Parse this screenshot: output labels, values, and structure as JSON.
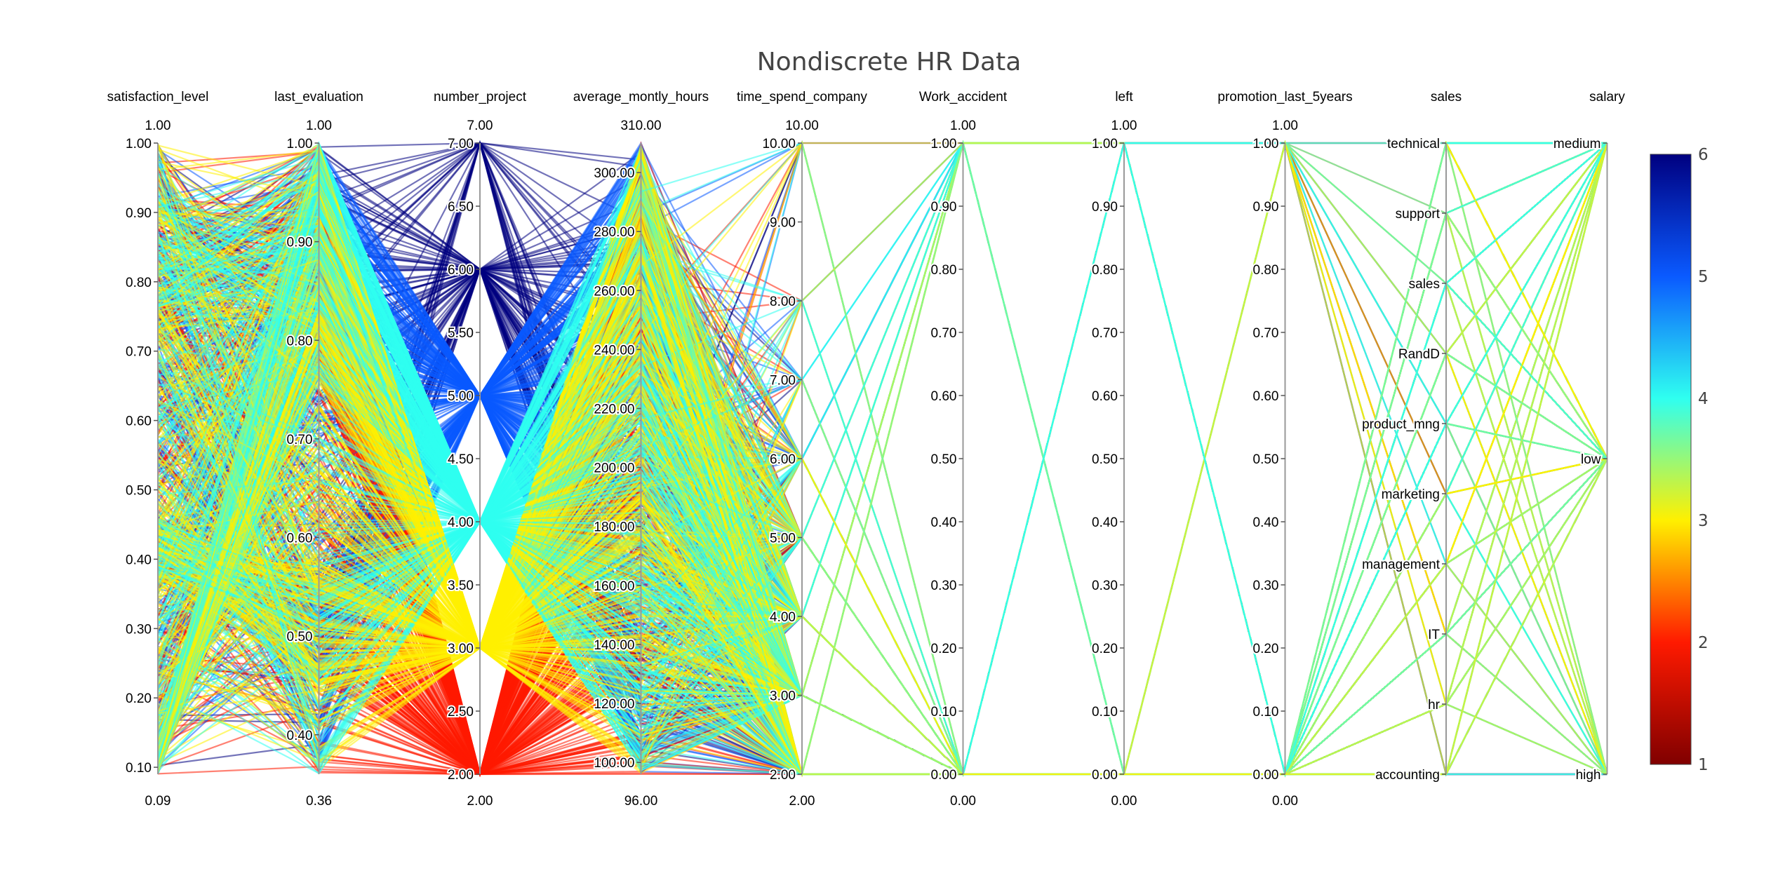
{
  "chart_data": {
    "type": "parallel_coordinates",
    "title": "Nondiscrete HR Data",
    "color_dimension": "number_project",
    "colorscale": "Jet (reversed)",
    "colorbar": {
      "min": 1,
      "max": 6,
      "ticks": [
        1,
        2,
        3,
        4,
        5,
        6
      ]
    },
    "dimensions": [
      {
        "label": "satisfaction_level",
        "type": "numeric",
        "min": 0.09,
        "max": 1.0,
        "range_min_label": "0.09",
        "range_max_label": "1.00",
        "ticks": [
          0.1,
          0.2,
          0.3,
          0.4,
          0.5,
          0.6,
          0.7,
          0.8,
          0.9,
          1.0
        ],
        "tick_labels": [
          "0.10",
          "0.20",
          "0.30",
          "0.40",
          "0.50",
          "0.60",
          "0.70",
          "0.80",
          "0.90",
          "1.00"
        ]
      },
      {
        "label": "last_evaluation",
        "type": "numeric",
        "min": 0.36,
        "max": 1.0,
        "range_min_label": "0.36",
        "range_max_label": "1.00",
        "ticks": [
          0.4,
          0.5,
          0.6,
          0.7,
          0.8,
          0.9,
          1.0
        ],
        "tick_labels": [
          "0.40",
          "0.50",
          "0.60",
          "0.70",
          "0.80",
          "0.90",
          "1.00"
        ]
      },
      {
        "label": "number_project",
        "type": "numeric",
        "min": 2.0,
        "max": 7.0,
        "range_min_label": "2.00",
        "range_max_label": "7.00",
        "ticks": [
          2,
          2.5,
          3,
          3.5,
          4,
          4.5,
          5,
          5.5,
          6,
          6.5,
          7
        ],
        "tick_labels": [
          "2.00",
          "2.50",
          "3.00",
          "3.50",
          "4.00",
          "4.50",
          "5.00",
          "5.50",
          "6.00",
          "6.50",
          "7.00"
        ]
      },
      {
        "label": "average_montly_hours",
        "type": "numeric",
        "min": 96.0,
        "max": 310.0,
        "range_min_label": "96.00",
        "range_max_label": "310.00",
        "ticks": [
          100,
          120,
          140,
          160,
          180,
          200,
          220,
          240,
          260,
          280,
          300
        ],
        "tick_labels": [
          "100.00",
          "120.00",
          "140.00",
          "160.00",
          "180.00",
          "200.00",
          "220.00",
          "240.00",
          "260.00",
          "280.00",
          "300.00"
        ]
      },
      {
        "label": "time_spend_company",
        "type": "numeric",
        "min": 2.0,
        "max": 10.0,
        "range_min_label": "2.00",
        "range_max_label": "10.00",
        "ticks": [
          2,
          3,
          4,
          5,
          6,
          7,
          8,
          9,
          10
        ],
        "tick_labels": [
          "2.00",
          "3.00",
          "4.00",
          "5.00",
          "6.00",
          "7.00",
          "8.00",
          "9.00",
          "10.00"
        ]
      },
      {
        "label": "Work_accident",
        "type": "numeric",
        "min": 0.0,
        "max": 1.0,
        "range_min_label": "0.00",
        "range_max_label": "1.00",
        "ticks": [
          0,
          0.1,
          0.2,
          0.3,
          0.4,
          0.5,
          0.6,
          0.7,
          0.8,
          0.9,
          1.0
        ],
        "tick_labels": [
          "0.00",
          "0.10",
          "0.20",
          "0.30",
          "0.40",
          "0.50",
          "0.60",
          "0.70",
          "0.80",
          "0.90",
          "1.00"
        ]
      },
      {
        "label": "left",
        "type": "numeric",
        "min": 0.0,
        "max": 1.0,
        "range_min_label": "0.00",
        "range_max_label": "1.00",
        "ticks": [
          0,
          0.1,
          0.2,
          0.3,
          0.4,
          0.5,
          0.6,
          0.7,
          0.8,
          0.9,
          1.0
        ],
        "tick_labels": [
          "0.00",
          "0.10",
          "0.20",
          "0.30",
          "0.40",
          "0.50",
          "0.60",
          "0.70",
          "0.80",
          "0.90",
          "1.00"
        ]
      },
      {
        "label": "promotion_last_5years",
        "type": "numeric",
        "min": 0.0,
        "max": 1.0,
        "range_min_label": "0.00",
        "range_max_label": "1.00",
        "ticks": [
          0,
          0.1,
          0.2,
          0.3,
          0.4,
          0.5,
          0.6,
          0.7,
          0.8,
          0.9,
          1.0
        ],
        "tick_labels": [
          "0.00",
          "0.10",
          "0.20",
          "0.30",
          "0.40",
          "0.50",
          "0.60",
          "0.70",
          "0.80",
          "0.90",
          "1.00"
        ]
      },
      {
        "label": "sales",
        "type": "categorical",
        "categories": [
          "accounting",
          "hr",
          "IT",
          "management",
          "marketing",
          "product_mng",
          "RandD",
          "sales",
          "support",
          "technical"
        ]
      },
      {
        "label": "salary",
        "type": "categorical",
        "categories": [
          "high",
          "low",
          "medium"
        ]
      }
    ],
    "grid": false,
    "legend": "none"
  }
}
